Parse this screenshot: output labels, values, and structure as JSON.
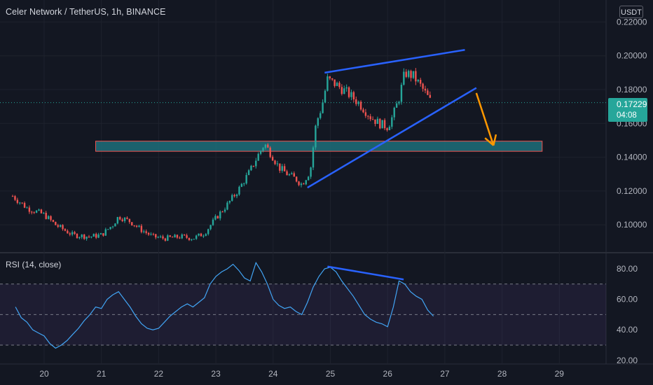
{
  "header": {
    "title": "Celer Network / TetherUS, 1h, BINANCE",
    "currency": "USDT"
  },
  "price_tag": {
    "price": "0.17229",
    "countdown": "04:08"
  },
  "rsi_panel": {
    "label": "RSI (14, close)"
  },
  "colors": {
    "background": "#131722",
    "up": "#26a69a",
    "down": "#ef5350",
    "rsi_line": "#42a5f5",
    "trendline": "#2962ff",
    "arrow": "#ff9800",
    "zone_fill": "#1e6e7a",
    "zone_border": "#ef5350"
  },
  "chart_data": [
    {
      "type": "candlestick",
      "x_ticks": [
        "20",
        "21",
        "22",
        "23",
        "24",
        "25",
        "26",
        "27",
        "28",
        "29"
      ],
      "y_ticks": [
        "0.22000",
        "0.20000",
        "0.18000",
        "0.16000",
        "0.14000",
        "0.12000",
        "0.10000"
      ],
      "ylim": [
        0.088,
        0.225
      ],
      "xlim": [
        19.5,
        29.8
      ],
      "current_price": 0.17229,
      "ohlc_path": [
        [
          19.45,
          0.117
        ],
        [
          19.7,
          0.11
        ],
        [
          20.0,
          0.106
        ],
        [
          20.2,
          0.1
        ],
        [
          20.5,
          0.094
        ],
        [
          20.8,
          0.093
        ],
        [
          21.0,
          0.094
        ],
        [
          21.2,
          0.1
        ],
        [
          21.3,
          0.105
        ],
        [
          21.5,
          0.102
        ],
        [
          21.7,
          0.097
        ],
        [
          21.9,
          0.093
        ],
        [
          22.1,
          0.092
        ],
        [
          22.4,
          0.093
        ],
        [
          22.6,
          0.092
        ],
        [
          22.8,
          0.095
        ],
        [
          23.0,
          0.104
        ],
        [
          23.2,
          0.112
        ],
        [
          23.4,
          0.121
        ],
        [
          23.6,
          0.132
        ],
        [
          23.75,
          0.142
        ],
        [
          23.85,
          0.148
        ],
        [
          24.0,
          0.14
        ],
        [
          24.1,
          0.134
        ],
        [
          24.25,
          0.13
        ],
        [
          24.4,
          0.127
        ],
        [
          24.5,
          0.124
        ],
        [
          24.65,
          0.132
        ],
        [
          24.75,
          0.16
        ],
        [
          24.85,
          0.17
        ],
        [
          24.95,
          0.186
        ],
        [
          25.1,
          0.183
        ],
        [
          25.3,
          0.178
        ],
        [
          25.5,
          0.172
        ],
        [
          25.7,
          0.164
        ],
        [
          25.85,
          0.16
        ],
        [
          26.0,
          0.158
        ],
        [
          26.1,
          0.165
        ],
        [
          26.2,
          0.175
        ],
        [
          26.3,
          0.19
        ],
        [
          26.45,
          0.188
        ],
        [
          26.6,
          0.181
        ],
        [
          26.75,
          0.173
        ]
      ],
      "annotations": {
        "support_zone": {
          "x": [
            20.9,
            28.7
          ],
          "y": [
            0.1435,
            0.1495
          ]
        },
        "trendline_top": {
          "x": [
            24.9,
            27.35
          ],
          "y": [
            0.19,
            0.2035
          ]
        },
        "trendline_bottom": {
          "x": [
            24.6,
            27.55
          ],
          "y": [
            0.122,
            0.181
          ]
        },
        "arrow": {
          "from": [
            27.55,
            0.178
          ],
          "to": [
            27.85,
            0.147
          ]
        }
      }
    },
    {
      "type": "line",
      "name": "RSI (14, close)",
      "y_ticks": [
        "80.00",
        "60.00",
        "40.00",
        "20.00"
      ],
      "ylim": [
        20,
        87
      ],
      "bands": [
        70,
        50,
        30
      ],
      "x": [
        19.5,
        19.6,
        19.7,
        19.8,
        19.9,
        20.0,
        20.1,
        20.2,
        20.3,
        20.4,
        20.5,
        20.6,
        20.7,
        20.8,
        20.9,
        21.0,
        21.1,
        21.2,
        21.3,
        21.4,
        21.5,
        21.6,
        21.7,
        21.8,
        21.9,
        22.0,
        22.1,
        22.2,
        22.3,
        22.4,
        22.5,
        22.6,
        22.7,
        22.8,
        22.9,
        23.0,
        23.1,
        23.2,
        23.3,
        23.4,
        23.5,
        23.6,
        23.7,
        23.8,
        23.9,
        24.0,
        24.1,
        24.2,
        24.3,
        24.4,
        24.5,
        24.6,
        24.7,
        24.8,
        24.9,
        25.0,
        25.1,
        25.2,
        25.3,
        25.4,
        25.5,
        25.6,
        25.7,
        25.8,
        25.9,
        26.0,
        26.1,
        26.2,
        26.3,
        26.4,
        26.5,
        26.6,
        26.7,
        26.8
      ],
      "values": [
        55,
        48,
        45,
        40,
        38,
        36,
        31,
        28,
        30,
        33,
        37,
        41,
        46,
        50,
        55,
        54,
        60,
        63,
        65,
        60,
        55,
        49,
        44,
        41,
        40,
        41,
        45,
        49,
        52,
        55,
        57,
        55,
        58,
        61,
        70,
        75,
        78,
        80,
        83,
        79,
        74,
        72,
        84,
        78,
        70,
        60,
        56,
        54,
        55,
        52,
        50,
        58,
        68,
        75,
        80,
        81,
        78,
        72,
        67,
        62,
        56,
        50,
        47,
        45,
        44,
        42,
        55,
        72,
        70,
        65,
        62,
        60,
        53,
        49
      ],
      "annotations": {
        "divergence_line": {
          "x": [
            24.95,
            26.28
          ],
          "y": [
            81.5,
            73
          ]
        }
      }
    }
  ]
}
